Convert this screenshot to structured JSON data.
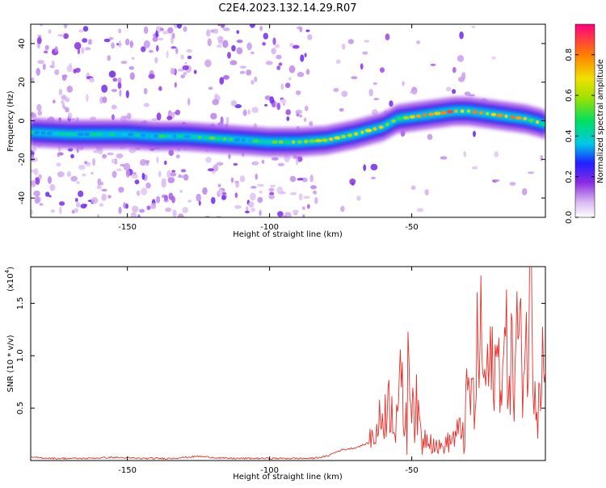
{
  "title": "C2E4.2023.132.14.29.R07",
  "chart_data": [
    {
      "type": "heatmap",
      "xlabel": "Height of straight line (km)",
      "ylabel": "Frequency (Hz)",
      "xlim": [
        -184,
        -3
      ],
      "ylim": [
        -50,
        50
      ],
      "xticks": [
        -150,
        -100,
        -50
      ],
      "yticks": [
        -40,
        -20,
        0,
        20,
        40
      ],
      "colorbar": {
        "label": "Normalized spectral amplitude",
        "range": [
          0,
          0.95
        ],
        "ticks": [
          0.0,
          0.2,
          0.4,
          0.6,
          0.8
        ]
      },
      "ridge": {
        "x": [
          -184,
          -170,
          -160,
          -150,
          -140,
          -130,
          -120,
          -110,
          -100,
          -90,
          -80,
          -70,
          -60,
          -55,
          -50,
          -45,
          -40,
          -35,
          -30,
          -25,
          -20,
          -15,
          -10,
          -5,
          -3
        ],
        "y": [
          -6,
          -7,
          -7,
          -7,
          -8,
          -8,
          -9,
          -10,
          -11,
          -11,
          -10,
          -7,
          -3,
          1,
          2,
          3,
          4,
          5,
          5,
          4,
          3,
          2,
          1,
          -1,
          -2
        ],
        "amplitude": [
          0.35,
          0.4,
          0.45,
          0.35,
          0.4,
          0.4,
          0.45,
          0.45,
          0.5,
          0.55,
          0.7,
          0.75,
          0.7,
          0.55,
          0.65,
          0.8,
          0.85,
          0.8,
          0.75,
          0.7,
          0.75,
          0.8,
          0.7,
          0.55,
          0.5
        ]
      }
    },
    {
      "type": "line",
      "xlabel": "Height of straight line (km)",
      "ylabel": "SNR (10 * v/v)",
      "y_multiplier": "(x10",
      "y_multiplier_exp": "4",
      "y_multiplier_close": ")",
      "xlim": [
        -184,
        -3
      ],
      "ylim": [
        0,
        1.85
      ],
      "xticks": [
        -150,
        -100,
        -50
      ],
      "yticks": [
        0.5,
        1.0,
        1.5
      ],
      "series": [
        {
          "color": "#e8302a",
          "x": [
            -184,
            -175,
            -165,
            -155,
            -145,
            -135,
            -125,
            -115,
            -105,
            -95,
            -85,
            -80,
            -75,
            -70,
            -65,
            -62,
            -60,
            -58,
            -56,
            -54,
            -52,
            -51,
            -50,
            -48,
            -46,
            -44,
            -42,
            -40,
            -38,
            -36,
            -34,
            -32,
            -30,
            -28,
            -27,
            -26,
            -25,
            -24,
            -23,
            -22,
            -21,
            -20,
            -19,
            -18,
            -17,
            -16,
            -15,
            -14,
            -13,
            -12,
            -11,
            -10,
            -9,
            -8,
            -7,
            -6,
            -5,
            -4,
            -3
          ],
          "y": [
            0.03,
            0.02,
            0.02,
            0.03,
            0.02,
            0.02,
            0.04,
            0.02,
            0.02,
            0.02,
            0.02,
            0.04,
            0.1,
            0.12,
            0.17,
            0.3,
            0.45,
            0.55,
            0.45,
            0.7,
            0.35,
            0.95,
            0.7,
            0.4,
            0.2,
            0.25,
            0.15,
            0.12,
            0.15,
            0.2,
            0.25,
            0.3,
            0.65,
            0.55,
            0.9,
            1.3,
            0.85,
            0.75,
            0.9,
            0.8,
            0.95,
            0.85,
            1.0,
            0.8,
            1.1,
            0.9,
            1.0,
            0.75,
            1.25,
            1.05,
            1.0,
            1.1,
            1.2,
            1.95,
            0.95,
            0.6,
            0.9,
            1.0,
            0.85
          ]
        }
      ]
    }
  ]
}
